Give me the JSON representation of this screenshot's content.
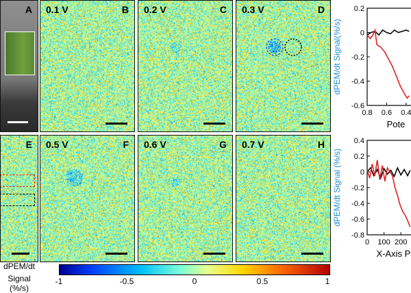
{
  "panels": {
    "A": {
      "letter": "A"
    },
    "B": {
      "letter": "B",
      "voltage": "0.1 V"
    },
    "C": {
      "letter": "C",
      "voltage": "0.2 V"
    },
    "D": {
      "letter": "D",
      "voltage": "0.3 V"
    },
    "E": {
      "letter": "E"
    },
    "F": {
      "letter": "F",
      "voltage": "0.5 V"
    },
    "G": {
      "letter": "G",
      "voltage": "0.6 V"
    },
    "H": {
      "letter": "H",
      "voltage": "0.7 V"
    }
  },
  "colorbar": {
    "label_line1": "dPEM/dt",
    "label_line2": "Signal (%/s)",
    "ticks": [
      "-1",
      "-0.5",
      "0",
      "0.5",
      "1"
    ]
  },
  "chart_data": [
    {
      "type": "line",
      "ylabel": "dPEM/dt Signal(%/s)",
      "xlabel": "Pote",
      "xlim": [
        0.8,
        0.35
      ],
      "ylim": [
        -0.6,
        0.2
      ],
      "xticks": [
        "0.8",
        "0.6",
        "0.4"
      ],
      "yticks": [
        "0.2",
        "0",
        "-0.2",
        "-0.4",
        "-0.6"
      ],
      "series": [
        {
          "name": "black",
          "color": "#000000",
          "x": [
            0.8,
            0.76,
            0.72,
            0.68,
            0.64,
            0.6,
            0.56,
            0.52,
            0.48,
            0.44,
            0.4,
            0.37
          ],
          "y": [
            -0.02,
            0.0,
            0.01,
            -0.02,
            0.02,
            0.0,
            -0.01,
            0.02,
            0.0,
            0.01,
            0.02,
            0.01
          ]
        },
        {
          "name": "red",
          "color": "#e02020",
          "x": [
            0.8,
            0.77,
            0.74,
            0.72,
            0.7,
            0.66,
            0.62,
            0.58,
            0.54,
            0.5,
            0.46,
            0.42,
            0.39,
            0.37
          ],
          "y": [
            -0.02,
            -0.05,
            -0.02,
            0.02,
            -0.1,
            -0.12,
            -0.16,
            -0.22,
            -0.28,
            -0.36,
            -0.44,
            -0.5,
            -0.54,
            -0.52
          ]
        }
      ]
    },
    {
      "type": "line",
      "ylabel": "dPEM/dt Signal (%/s)",
      "xlabel": "X-Axis Pa",
      "xlim": [
        0,
        260
      ],
      "ylim": [
        -0.8,
        0.4
      ],
      "xticks": [
        "0",
        "100",
        "200"
      ],
      "yticks": [
        "0.4",
        "0.2",
        "0",
        "-0.2",
        "-0.4",
        "-0.6",
        "-0.8"
      ],
      "series": [
        {
          "name": "black",
          "color": "#000000",
          "x": [
            0,
            20,
            40,
            60,
            80,
            100,
            120,
            140,
            160,
            180,
            200,
            220,
            240,
            255
          ],
          "y": [
            0.0,
            0.05,
            -0.05,
            0.03,
            -0.08,
            0.04,
            -0.03,
            0.02,
            -0.06,
            0.05,
            -0.04,
            0.03,
            -0.05,
            0.02
          ]
        },
        {
          "name": "red",
          "color": "#e02020",
          "x": [
            0,
            15,
            30,
            45,
            60,
            75,
            90,
            105,
            120,
            135,
            150,
            165,
            180,
            195,
            210,
            225,
            240,
            255
          ],
          "y": [
            0.02,
            -0.08,
            0.1,
            -0.05,
            0.15,
            -0.1,
            0.08,
            -0.12,
            0.05,
            0.0,
            -0.05,
            -0.2,
            -0.3,
            -0.42,
            -0.5,
            -0.55,
            -0.62,
            -0.7
          ]
        }
      ]
    }
  ]
}
